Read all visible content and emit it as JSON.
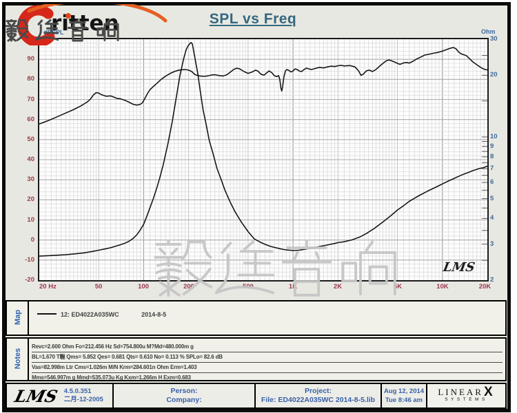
{
  "logo": {
    "brand": "ritten",
    "cjk": "毅廷音响"
  },
  "title": "SPL vs Freq",
  "chart_data": {
    "type": "line",
    "title": "SPL vs Freq",
    "grid": true,
    "x_axis": {
      "label": "Hz",
      "scale": "log",
      "min": 20,
      "max": 20000,
      "tick_labels": [
        "20 Hz",
        "50",
        "100",
        "200",
        "500",
        "1K",
        "2K",
        "5K",
        "10K",
        "20K"
      ],
      "tick_values": [
        20,
        50,
        100,
        200,
        500,
        1000,
        2000,
        5000,
        10000,
        20000
      ]
    },
    "y_left": {
      "label": "dBSPL",
      "scale": "linear",
      "min": -20,
      "max": 100,
      "ticks": [
        100,
        90,
        80,
        70,
        60,
        50,
        40,
        30,
        20,
        10,
        0,
        -10,
        -20
      ]
    },
    "y_right": {
      "label": "Ohm",
      "scale": "log",
      "min": 2,
      "max": 30,
      "ticks": [
        30,
        20,
        10,
        9,
        8,
        7,
        6,
        5,
        4,
        3,
        2
      ]
    },
    "watermark": "毅廷音响",
    "plot_mark": "LMS",
    "series": [
      {
        "name": "SPL (dB)",
        "axis": "left",
        "points": [
          [
            20,
            57.8
          ],
          [
            23,
            59.5
          ],
          [
            26,
            61.2
          ],
          [
            30,
            63.2
          ],
          [
            34,
            65.0
          ],
          [
            38,
            66.8
          ],
          [
            42,
            68.8
          ],
          [
            44,
            70.2
          ],
          [
            46,
            72.2
          ],
          [
            48,
            73.4
          ],
          [
            50,
            73.2
          ],
          [
            52,
            72.4
          ],
          [
            56,
            71.6
          ],
          [
            60,
            71.8
          ],
          [
            63,
            71.2
          ],
          [
            66,
            70.6
          ],
          [
            70,
            70.3
          ],
          [
            75,
            69.6
          ],
          [
            80,
            68.6
          ],
          [
            85,
            67.6
          ],
          [
            90,
            67.2
          ],
          [
            95,
            67.6
          ],
          [
            98,
            68.3
          ],
          [
            102,
            70.6
          ],
          [
            106,
            72.9
          ],
          [
            110,
            74.8
          ],
          [
            115,
            76.2
          ],
          [
            120,
            77.4
          ],
          [
            130,
            79.8
          ],
          [
            140,
            81.6
          ],
          [
            150,
            82.9
          ],
          [
            160,
            83.9
          ],
          [
            170,
            84.5
          ],
          [
            180,
            84.8
          ],
          [
            190,
            84.9
          ],
          [
            200,
            84.6
          ],
          [
            210,
            83.9
          ],
          [
            220,
            82.4
          ],
          [
            230,
            81.9
          ],
          [
            240,
            81.7
          ],
          [
            255,
            81.5
          ],
          [
            270,
            81.8
          ],
          [
            285,
            82.2
          ],
          [
            300,
            82.3
          ],
          [
            320,
            81.9
          ],
          [
            340,
            81.7
          ],
          [
            360,
            82.3
          ],
          [
            380,
            83.6
          ],
          [
            400,
            84.9
          ],
          [
            420,
            85.6
          ],
          [
            440,
            85.2
          ],
          [
            470,
            83.9
          ],
          [
            500,
            83.0
          ],
          [
            530,
            83.6
          ],
          [
            560,
            84.6
          ],
          [
            580,
            84.2
          ],
          [
            610,
            82.6
          ],
          [
            640,
            82.1
          ],
          [
            660,
            83.0
          ],
          [
            690,
            84.2
          ],
          [
            720,
            83.4
          ],
          [
            750,
            81.8
          ],
          [
            780,
            81.4
          ],
          [
            800,
            81.9
          ],
          [
            815,
            80.0
          ],
          [
            830,
            75.6
          ],
          [
            840,
            74.2
          ],
          [
            850,
            76.0
          ],
          [
            870,
            81.5
          ],
          [
            890,
            84.3
          ],
          [
            910,
            84.9
          ],
          [
            940,
            84.4
          ],
          [
            970,
            83.7
          ],
          [
            1000,
            84.2
          ],
          [
            1030,
            85.2
          ],
          [
            1060,
            85.0
          ],
          [
            1100,
            84.2
          ],
          [
            1140,
            83.9
          ],
          [
            1180,
            84.8
          ],
          [
            1230,
            85.6
          ],
          [
            1280,
            85.2
          ],
          [
            1330,
            84.9
          ],
          [
            1400,
            85.4
          ],
          [
            1500,
            86.0
          ],
          [
            1600,
            85.7
          ],
          [
            1700,
            86.2
          ],
          [
            1800,
            86.6
          ],
          [
            1900,
            86.4
          ],
          [
            2000,
            86.8
          ],
          [
            2100,
            87.0
          ],
          [
            2200,
            86.7
          ],
          [
            2400,
            86.9
          ],
          [
            2600,
            86.2
          ],
          [
            2750,
            84.2
          ],
          [
            2850,
            82.0
          ],
          [
            2950,
            82.6
          ],
          [
            3100,
            84.3
          ],
          [
            3250,
            84.6
          ],
          [
            3400,
            83.9
          ],
          [
            3600,
            85.0
          ],
          [
            3800,
            86.6
          ],
          [
            4000,
            88.0
          ],
          [
            4200,
            89.2
          ],
          [
            4400,
            89.7
          ],
          [
            4700,
            88.9
          ],
          [
            5000,
            88.0
          ],
          [
            5200,
            87.5
          ],
          [
            5500,
            88.2
          ],
          [
            5800,
            88.4
          ],
          [
            6000,
            88.1
          ],
          [
            6300,
            88.9
          ],
          [
            6700,
            90.1
          ],
          [
            7200,
            91.2
          ],
          [
            7600,
            92.1
          ],
          [
            8200,
            92.6
          ],
          [
            8700,
            93.0
          ],
          [
            9300,
            93.4
          ],
          [
            10000,
            94.1
          ],
          [
            10700,
            94.9
          ],
          [
            11300,
            95.5
          ],
          [
            11800,
            95.9
          ],
          [
            12300,
            95.3
          ],
          [
            12800,
            93.8
          ],
          [
            13300,
            92.8
          ],
          [
            14000,
            92.2
          ],
          [
            14500,
            91.8
          ],
          [
            15200,
            90.3
          ],
          [
            16000,
            88.7
          ],
          [
            17000,
            87.3
          ],
          [
            18000,
            86.0
          ],
          [
            19000,
            85.1
          ],
          [
            20000,
            84.7
          ]
        ]
      },
      {
        "name": "Impedance (Ohm)",
        "axis": "right",
        "points": [
          [
            20,
            2.62
          ],
          [
            25,
            2.64
          ],
          [
            30,
            2.66
          ],
          [
            35,
            2.69
          ],
          [
            40,
            2.72
          ],
          [
            45,
            2.76
          ],
          [
            50,
            2.8
          ],
          [
            55,
            2.84
          ],
          [
            60,
            2.88
          ],
          [
            65,
            2.93
          ],
          [
            70,
            2.98
          ],
          [
            75,
            3.03
          ],
          [
            80,
            3.1
          ],
          [
            85,
            3.2
          ],
          [
            90,
            3.33
          ],
          [
            95,
            3.52
          ],
          [
            100,
            3.75
          ],
          [
            105,
            4.1
          ],
          [
            110,
            4.5
          ],
          [
            116,
            5.0
          ],
          [
            122,
            5.6
          ],
          [
            128,
            6.3
          ],
          [
            135,
            7.3
          ],
          [
            145,
            9.2
          ],
          [
            155,
            11.8
          ],
          [
            165,
            15.5
          ],
          [
            175,
            20.0
          ],
          [
            185,
            24.0
          ],
          [
            192,
            26.5
          ],
          [
            198,
            27.8
          ],
          [
            204,
            28.6
          ],
          [
            208,
            28.9
          ],
          [
            212,
            28.4
          ],
          [
            220,
            24.5
          ],
          [
            230,
            20.5
          ],
          [
            240,
            16.5
          ],
          [
            250,
            13.5
          ],
          [
            262,
            11.5
          ],
          [
            275,
            9.6
          ],
          [
            290,
            8.4
          ],
          [
            310,
            7.0
          ],
          [
            330,
            6.2
          ],
          [
            350,
            5.5
          ],
          [
            380,
            4.8
          ],
          [
            410,
            4.3
          ],
          [
            450,
            3.85
          ],
          [
            500,
            3.45
          ],
          [
            550,
            3.18
          ],
          [
            600,
            3.07
          ],
          [
            650,
            2.99
          ],
          [
            700,
            2.93
          ],
          [
            750,
            2.89
          ],
          [
            800,
            2.86
          ],
          [
            850,
            2.83
          ],
          [
            900,
            2.81
          ],
          [
            950,
            2.8
          ],
          [
            1000,
            2.79
          ],
          [
            1100,
            2.8
          ],
          [
            1200,
            2.83
          ],
          [
            1300,
            2.86
          ],
          [
            1400,
            2.89
          ],
          [
            1500,
            2.92
          ],
          [
            1700,
            2.97
          ],
          [
            1900,
            3.02
          ],
          [
            2000,
            3.05
          ],
          [
            2200,
            3.08
          ],
          [
            2500,
            3.15
          ],
          [
            2800,
            3.25
          ],
          [
            3100,
            3.38
          ],
          [
            3500,
            3.58
          ],
          [
            4000,
            3.85
          ],
          [
            4500,
            4.12
          ],
          [
            5000,
            4.4
          ],
          [
            5500,
            4.62
          ],
          [
            6000,
            4.85
          ],
          [
            6500,
            5.02
          ],
          [
            7000,
            5.18
          ],
          [
            8000,
            5.45
          ],
          [
            9000,
            5.68
          ],
          [
            10000,
            5.9
          ],
          [
            11000,
            6.1
          ],
          [
            12000,
            6.28
          ],
          [
            13000,
            6.45
          ],
          [
            14000,
            6.6
          ],
          [
            15000,
            6.72
          ],
          [
            16000,
            6.85
          ],
          [
            17500,
            7.0
          ],
          [
            19000,
            7.1
          ],
          [
            20000,
            7.2
          ]
        ]
      }
    ]
  },
  "map": {
    "label": "Map",
    "legend": {
      "index": "12:",
      "name": "ED4022A035WC",
      "date": "2014-8-5"
    }
  },
  "notes": {
    "label": "Notes",
    "lines": [
      "Revc=2.600 Ohm  Fo=212.456 Hz  Sd=754.800u M?Md=480.000m g",
      "BL=1.670 T糎  Qms= 5.852  Qes= 0.681  Qts= 0.610  No= 0.113 %  SPLo= 82.6 dB",
      "Vas=82.998m Ltr  Cms=1.026m M/N  Krm=284.601n Ohm  Erm=1.403",
      "Mms=546.997m g  Mmd=535.073u Kg  Kxm=1.266m H  Exm=0.683"
    ]
  },
  "footer": {
    "lms_script": "LMS",
    "version": "4.5.0.351",
    "version_date": "二月-12-2005",
    "person_label": "Person:",
    "company_label": "Company:",
    "project_label": "Project:",
    "file_line": "File: ED4022A035WC     2014-8-5.lib",
    "date": "Aug 12, 2014",
    "time": "Tue  8:46 am",
    "brand": {
      "linear": "LINEAR",
      "x": "X",
      "systems": "SYSTEMS"
    }
  },
  "colors": {
    "x_labels": "#9c3352",
    "y_left_labels": "#993c44",
    "y_right_labels": "#3a6a9e",
    "title": "#35687f",
    "footer_text": "#3861a8",
    "curve": "#161616",
    "logo_red": "#d6281a",
    "logo_orange": "#e66020",
    "watermark": "#c6c6c6"
  }
}
